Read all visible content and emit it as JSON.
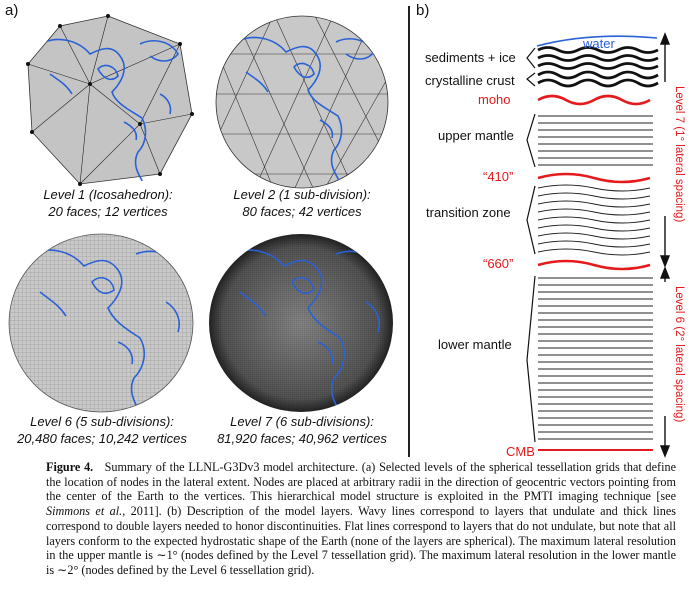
{
  "panel_a": {
    "label": "a)",
    "globes": [
      {
        "id": "level1",
        "line1": "Level 1 (Icosahedron):",
        "line2": "20 faces; 12 vertices",
        "style": "icosahedron"
      },
      {
        "id": "level2",
        "line1": "Level 2 (1 sub-division):",
        "line2": "80 faces; 42 vertices",
        "style": "subdivision"
      },
      {
        "id": "level6",
        "line1": "Level 6 (5 sub-divisions):",
        "line2": "20,480 faces; 10,242 vertices",
        "style": "fine"
      },
      {
        "id": "level7",
        "line1": "Level 7 (6 sub-divisions):",
        "line2": "81,920 faces; 40,962 vertices",
        "style": "finer"
      }
    ]
  },
  "panel_b": {
    "label": "b)",
    "labels": {
      "water": "water",
      "sediments": "sediments + ice",
      "crust": "crystalline crust",
      "moho": "moho",
      "upper_mantle": "upper mantle",
      "d410": "“410”",
      "transition": "transition zone",
      "d660": "“660”",
      "lower_mantle": "lower mantle",
      "cmb": "CMB"
    },
    "level7_label": "Level 7 (1° lateral spacing)",
    "level6_label": "Level 6 (2° lateral spacing)"
  },
  "caption": {
    "title": "Figure 4.",
    "text": "Summary of the LLNL-G3Dv3 model architecture. (a) Selected levels of the spherical tessellation grids that define the location of nodes in the lateral extent. Nodes are placed at arbitrary radii in the direction of geocentric vectors pointing from the center of the Earth to the vertices. This hierarchical model structure is exploited in the PMTI imaging technique [see ",
    "cite": "Simmons et al.",
    "text2": ", 2011]. (b) Description of the model layers. Wavy lines correspond to layers that undulate and thick lines correspond to double layers needed to honor discontinuities. Flat lines correspond to layers that do not undulate, but note that all layers conform to the expected hydrostatic shape of the Earth (none of the layers are spherical). The maximum lateral resolution in the upper mantle is ∼1° (nodes defined by the Level 7 tessellation grid). The maximum lateral resolution in the lower mantle is ∼2° (nodes defined by the Level 6 tessellation grid)."
  },
  "colors": {
    "red": "#e41a1c",
    "blue": "#2a62d6",
    "globe_light": "#c8c8c8",
    "globe_dark": "#3a3a3a"
  }
}
